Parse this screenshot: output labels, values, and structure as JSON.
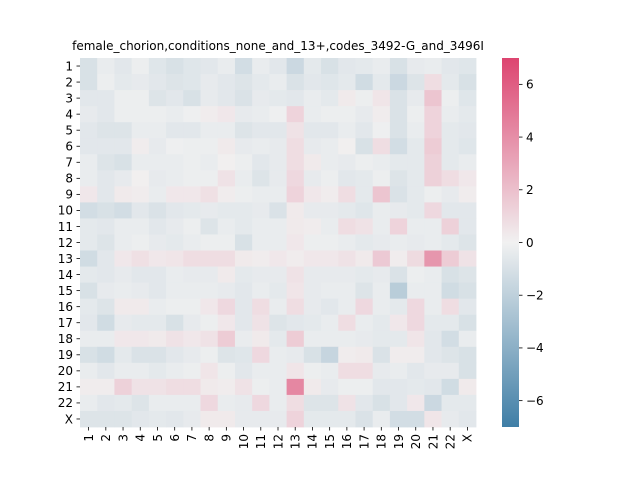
{
  "chart_data": {
    "type": "heatmap",
    "title": "female_chorion,conditions_none_and_13+,codes_3492-G_and_3496I",
    "xlabel": "",
    "ylabel": "",
    "x_labels": [
      "1",
      "2",
      "3",
      "4",
      "5",
      "6",
      "7",
      "8",
      "9",
      "10",
      "11",
      "12",
      "13",
      "14",
      "15",
      "16",
      "17",
      "18",
      "19",
      "20",
      "21",
      "22",
      "X"
    ],
    "y_labels": [
      "1",
      "2",
      "3",
      "4",
      "5",
      "6",
      "7",
      "8",
      "9",
      "10",
      "11",
      "12",
      "13",
      "14",
      "15",
      "16",
      "17",
      "18",
      "19",
      "20",
      "21",
      "22",
      "X"
    ],
    "colorbar": {
      "vmin": -7,
      "vmax": 7,
      "ticks": [
        6,
        4,
        2,
        0,
        -2,
        -4,
        -6
      ],
      "tick_labels": [
        "6",
        "4",
        "2",
        "0",
        "−2",
        "−4",
        "−6"
      ],
      "colormap": "diverging",
      "colors": {
        "low": "#3f7ea6",
        "mid": "#f1f1f1",
        "high": "#dd4470"
      }
    },
    "values": [
      [
        -1.0,
        -0.3,
        -0.6,
        -0.2,
        -0.7,
        -1.0,
        -0.7,
        -0.6,
        -0.3,
        -1.2,
        -0.3,
        -0.6,
        -1.5,
        -0.5,
        -1.0,
        -0.6,
        -0.5,
        -0.3,
        -1.0,
        -0.4,
        -0.3,
        -0.6,
        -0.7
      ],
      [
        -1.0,
        -0.2,
        -0.5,
        -0.4,
        -0.6,
        -0.8,
        -0.7,
        -0.4,
        -0.6,
        -0.8,
        -0.5,
        -0.3,
        -0.9,
        -0.6,
        -0.7,
        -0.5,
        -1.3,
        -0.5,
        -1.5,
        -0.8,
        0.8,
        -0.5,
        -1.0
      ],
      [
        -0.6,
        -0.6,
        -0.2,
        -0.2,
        -0.8,
        -0.6,
        -1.0,
        -0.4,
        -0.6,
        -0.9,
        -0.4,
        -0.5,
        -0.6,
        -0.3,
        -0.5,
        0.3,
        -0.2,
        0.5,
        -0.9,
        -0.4,
        1.8,
        -0.2,
        -0.7
      ],
      [
        -0.4,
        -0.6,
        -0.2,
        -0.2,
        -0.2,
        -0.3,
        -0.1,
        0.2,
        0.4,
        -0.4,
        -0.3,
        -0.1,
        1.2,
        -0.3,
        -0.2,
        -0.2,
        -0.4,
        0.2,
        -0.9,
        -0.2,
        1.2,
        -0.3,
        -0.5
      ],
      [
        -0.6,
        -0.8,
        -0.8,
        -0.3,
        -0.3,
        -0.6,
        -0.6,
        -0.3,
        -0.3,
        -0.8,
        -0.6,
        -0.6,
        0.6,
        -0.6,
        -0.6,
        -0.3,
        -0.6,
        -0.1,
        -0.9,
        -0.3,
        1.2,
        -0.5,
        -0.6
      ],
      [
        -0.6,
        -0.6,
        -0.6,
        0.2,
        -0.4,
        -0.1,
        -0.2,
        -0.2,
        0.3,
        -0.4,
        -0.3,
        -0.4,
        0.8,
        -0.4,
        -0.3,
        0.1,
        -1.0,
        0.8,
        -1.2,
        -0.5,
        1.5,
        -0.5,
        -0.7
      ],
      [
        -0.3,
        -0.8,
        -1.0,
        -0.3,
        -0.3,
        -0.3,
        -0.2,
        -0.3,
        0.1,
        -0.2,
        -0.6,
        -0.4,
        0.8,
        0.3,
        -0.3,
        -0.4,
        -0.2,
        -0.3,
        -0.5,
        -0.5,
        1.3,
        -0.5,
        -0.3
      ],
      [
        -0.3,
        -0.6,
        -0.4,
        0.1,
        -0.4,
        -0.3,
        -0.2,
        -0.2,
        0.6,
        -0.3,
        -0.8,
        -0.4,
        1.0,
        -0.4,
        -0.2,
        -0.6,
        -0.5,
        -0.2,
        -0.8,
        -0.5,
        1.3,
        0.8,
        0.4
      ],
      [
        0.4,
        -0.6,
        0.3,
        0.2,
        -0.3,
        0.4,
        0.4,
        0.7,
        0.2,
        -0.2,
        -0.3,
        -0.3,
        1.2,
        0.4,
        0.2,
        0.8,
        -0.5,
        1.8,
        -0.9,
        -0.5,
        -0.2,
        -0.4,
        0.2
      ],
      [
        -1.2,
        -1.0,
        -1.2,
        -0.6,
        -0.9,
        -0.6,
        -0.5,
        -0.4,
        -0.5,
        -0.5,
        -0.4,
        -0.9,
        0.3,
        -0.4,
        -0.4,
        -0.5,
        -0.7,
        -0.3,
        -0.4,
        -0.5,
        1.0,
        -0.6,
        -0.6
      ],
      [
        -0.5,
        -0.6,
        -0.3,
        -0.3,
        -0.6,
        -0.4,
        -0.2,
        -0.8,
        -0.3,
        -0.5,
        -0.3,
        -0.3,
        0.3,
        0.2,
        -0.3,
        0.8,
        0.6,
        -0.3,
        1.2,
        -0.3,
        -0.3,
        1.3,
        -0.6
      ],
      [
        -0.5,
        -0.8,
        -0.3,
        -0.2,
        -0.4,
        -0.5,
        -0.3,
        -0.2,
        -0.2,
        -1.0,
        -0.3,
        -0.3,
        0.4,
        -0.2,
        -0.2,
        -0.3,
        -0.5,
        -0.4,
        -0.3,
        -0.4,
        -0.3,
        -0.5,
        -0.8
      ],
      [
        -1.3,
        -0.6,
        0.4,
        0.7,
        0.4,
        0.5,
        0.8,
        0.8,
        0.8,
        0.3,
        0.2,
        0.4,
        0.2,
        0.4,
        0.4,
        0.6,
        0.3,
        1.6,
        0.2,
        0.9,
        3.7,
        1.5,
        0.6
      ],
      [
        -0.5,
        -0.6,
        -0.4,
        -0.6,
        -0.6,
        -0.3,
        -0.4,
        -0.4,
        0.3,
        -0.5,
        -0.4,
        -0.4,
        0.6,
        -0.4,
        -0.4,
        -0.4,
        -0.5,
        -0.4,
        -0.9,
        -0.2,
        -0.3,
        -1.0,
        -0.8
      ],
      [
        -1.0,
        -0.4,
        -0.3,
        -0.4,
        -0.6,
        -0.3,
        -0.3,
        -0.3,
        -0.4,
        -0.6,
        -0.3,
        -0.5,
        0.5,
        -0.4,
        -0.3,
        -0.3,
        -0.8,
        -0.3,
        -2.2,
        -0.3,
        -0.3,
        -1.3,
        -1.0
      ],
      [
        -0.5,
        -0.8,
        0.3,
        0.3,
        -0.3,
        -0.2,
        -0.2,
        0.4,
        1.0,
        -0.6,
        0.8,
        -0.3,
        0.8,
        -0.4,
        -0.6,
        -0.3,
        1.0,
        -0.3,
        -0.5,
        1.0,
        -0.3,
        0.8,
        -0.6
      ],
      [
        -0.6,
        -1.3,
        -0.4,
        -0.5,
        -0.5,
        -1.0,
        -0.4,
        -0.2,
        0.4,
        -0.6,
        0.6,
        -0.8,
        -0.6,
        -0.5,
        -0.3,
        0.8,
        -0.3,
        -0.5,
        0.4,
        1.0,
        -0.5,
        -0.5,
        -1.0
      ],
      [
        -0.3,
        -0.3,
        0.4,
        0.4,
        0.3,
        0.6,
        0.4,
        0.6,
        1.5,
        -0.3,
        0.3,
        -0.5,
        1.5,
        -0.3,
        -0.3,
        -0.3,
        -0.4,
        -0.5,
        -0.5,
        0.5,
        -0.6,
        -1.2,
        -0.3
      ],
      [
        -1.0,
        -1.3,
        -0.5,
        -0.9,
        -0.9,
        -0.6,
        -0.4,
        -0.2,
        -0.8,
        -0.7,
        1.0,
        -0.3,
        -0.4,
        -1.0,
        -1.7,
        0.2,
        0.3,
        -0.9,
        0.2,
        0.2,
        -0.6,
        -0.8,
        -1.0
      ],
      [
        -0.3,
        -0.6,
        -0.3,
        -0.3,
        -0.5,
        -0.3,
        -0.2,
        0.5,
        -0.2,
        -0.6,
        -0.3,
        -0.3,
        0.5,
        -0.2,
        -0.3,
        0.8,
        0.8,
        -0.4,
        -0.3,
        -0.6,
        -0.4,
        -0.4,
        -1.0
      ],
      [
        0.2,
        0.2,
        1.3,
        0.6,
        0.6,
        0.8,
        0.8,
        0.3,
        0.2,
        0.6,
        -0.2,
        -0.3,
        4.3,
        0.3,
        -0.4,
        -0.2,
        -0.2,
        -0.6,
        -0.6,
        -0.5,
        -0.6,
        -1.3,
        0.3
      ],
      [
        -0.3,
        -0.6,
        -0.5,
        -0.8,
        -0.3,
        -0.3,
        -0.3,
        1.0,
        -0.3,
        -0.4,
        1.0,
        -0.3,
        0.8,
        -0.8,
        -0.8,
        0.6,
        -0.6,
        -1.0,
        -0.6,
        0.4,
        -1.5,
        -0.5,
        -0.5
      ],
      [
        -0.8,
        -0.8,
        -0.8,
        -0.6,
        -0.5,
        -0.6,
        -0.4,
        0.3,
        0.3,
        -0.4,
        -0.4,
        -0.4,
        1.2,
        -0.5,
        -0.5,
        -0.5,
        -0.9,
        -0.3,
        -1.2,
        -1.2,
        0.5,
        -0.4,
        -0.6
      ]
    ]
  }
}
